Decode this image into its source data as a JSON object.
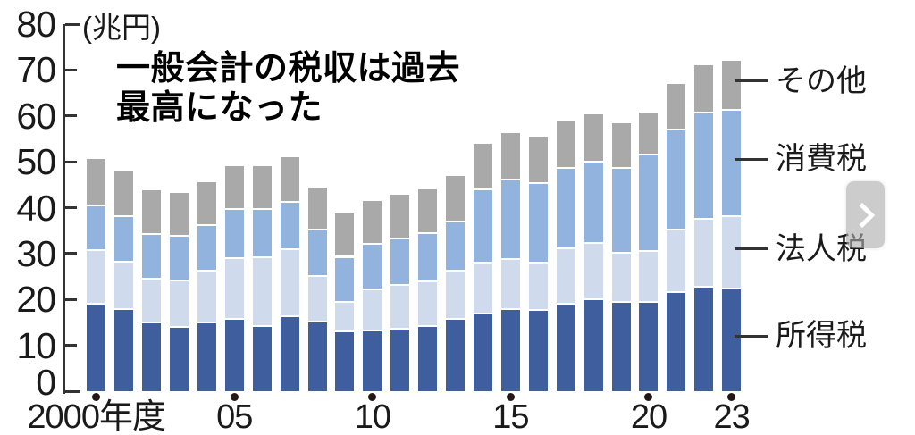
{
  "chart": {
    "title_lines": [
      "一般会計の税収は過去",
      "最高になった"
    ],
    "unit_label": "(兆円)"
  },
  "next_button": {
    "icon": "chevron-right"
  },
  "colors": {
    "income_tax": "#3e5e9d",
    "corporate_tax": "#cfdaec",
    "consumption_tax": "#92b3dd",
    "others": "#a9a9a9",
    "axis": "#333333",
    "tick_dot": "#231815",
    "text": "#1a1a1a",
    "background": "#ffffff"
  },
  "chart_data": {
    "type": "bar",
    "stacked": true,
    "title": "一般会計の税収は過去最高になった",
    "ylabel": "兆円",
    "xlabel": "年度",
    "ylim": [
      0,
      80
    ],
    "y_ticks": [
      0,
      10,
      20,
      30,
      40,
      50,
      60,
      70,
      80
    ],
    "grid": false,
    "legend_position": "right",
    "years": [
      2000,
      2001,
      2002,
      2003,
      2004,
      2005,
      2006,
      2007,
      2008,
      2009,
      2010,
      2011,
      2012,
      2013,
      2014,
      2015,
      2016,
      2017,
      2018,
      2019,
      2020,
      2021,
      2022,
      2023
    ],
    "x_tick_labels": [
      {
        "year": 2000,
        "label": "2000年度"
      },
      {
        "year": 2005,
        "label": "05"
      },
      {
        "year": 2010,
        "label": "10"
      },
      {
        "year": 2015,
        "label": "15"
      },
      {
        "year": 2020,
        "label": "20"
      },
      {
        "year": 2023,
        "label": "23"
      }
    ],
    "series": [
      {
        "key": "income-tax",
        "name": "所得税",
        "color": "#3e5e9d",
        "values": [
          18.8,
          17.8,
          14.8,
          13.9,
          14.7,
          15.6,
          14.1,
          16.1,
          15.0,
          12.9,
          13.0,
          13.5,
          14.0,
          15.5,
          16.8,
          17.8,
          17.6,
          18.9,
          19.9,
          19.2,
          19.2,
          21.4,
          22.5,
          22.1
        ]
      },
      {
        "key": "corporate-tax",
        "name": "法人税",
        "color": "#cfdaec",
        "values": [
          11.7,
          10.3,
          9.5,
          10.1,
          11.4,
          13.3,
          14.9,
          14.7,
          10.0,
          6.4,
          9.0,
          9.4,
          9.8,
          10.5,
          11.0,
          10.8,
          10.3,
          12.0,
          12.3,
          10.8,
          11.2,
          13.6,
          14.9,
          15.9
        ]
      },
      {
        "key": "consumption-tax",
        "name": "消費税",
        "color": "#92b3dd",
        "values": [
          9.8,
          9.8,
          9.8,
          9.7,
          10.0,
          10.6,
          10.5,
          10.3,
          10.0,
          9.8,
          10.0,
          10.2,
          10.4,
          10.8,
          16.0,
          17.4,
          17.2,
          17.5,
          17.7,
          18.4,
          21.0,
          21.9,
          23.1,
          23.1
        ]
      },
      {
        "key": "others",
        "name": "その他",
        "color": "#a9a9a9",
        "values": [
          10.4,
          10.0,
          9.7,
          9.6,
          9.5,
          9.6,
          9.6,
          9.9,
          9.3,
          9.6,
          9.5,
          9.7,
          9.7,
          10.2,
          10.2,
          10.3,
          10.4,
          10.4,
          10.5,
          10.0,
          9.4,
          10.1,
          10.6,
          11.0
        ]
      }
    ],
    "totals": [
      50.7,
      47.9,
      43.8,
      43.3,
      45.6,
      49.1,
      49.1,
      51.0,
      44.3,
      38.7,
      41.5,
      42.8,
      43.9,
      47.0,
      54.0,
      56.3,
      55.5,
      58.8,
      60.4,
      58.4,
      60.8,
      67.0,
      71.1,
      72.1
    ]
  }
}
